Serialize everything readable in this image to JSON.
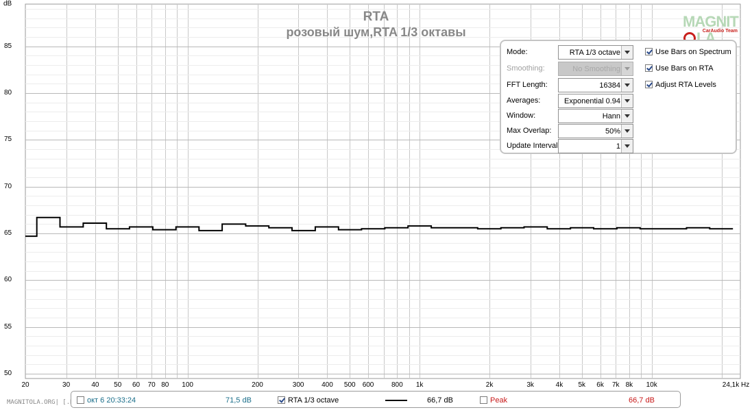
{
  "chart_data": {
    "type": "line",
    "title": "RTA",
    "subtitle": "розовый шум,RTA 1/3 октавы",
    "ylabel": "dB",
    "xlabel": "Hz",
    "xscale": "log",
    "xlim": [
      20,
      24100
    ],
    "ylim": [
      49.5,
      89.5
    ],
    "grid": true,
    "y_ticks": [
      50,
      55,
      60,
      65,
      70,
      75,
      80,
      85
    ],
    "x_tick_labels": [
      {
        "value": 20,
        "label": "20"
      },
      {
        "value": 30,
        "label": "30"
      },
      {
        "value": 40,
        "label": "40"
      },
      {
        "value": 50,
        "label": "50"
      },
      {
        "value": 60,
        "label": "60"
      },
      {
        "value": 70,
        "label": "70"
      },
      {
        "value": 80,
        "label": "80"
      },
      {
        "value": 100,
        "label": "100"
      },
      {
        "value": 200,
        "label": "200"
      },
      {
        "value": 300,
        "label": "300"
      },
      {
        "value": 400,
        "label": "400"
      },
      {
        "value": 500,
        "label": "500"
      },
      {
        "value": 600,
        "label": "600"
      },
      {
        "value": 800,
        "label": "800"
      },
      {
        "value": 1000,
        "label": "1k"
      },
      {
        "value": 2000,
        "label": "2k"
      },
      {
        "value": 3000,
        "label": "3k"
      },
      {
        "value": 4000,
        "label": "4k"
      },
      {
        "value": 5000,
        "label": "5k"
      },
      {
        "value": 6000,
        "label": "6k"
      },
      {
        "value": 7000,
        "label": "7k"
      },
      {
        "value": 8000,
        "label": "8k"
      },
      {
        "value": 10000,
        "label": "10k"
      },
      {
        "value": 24100,
        "label": "24,1k"
      }
    ],
    "series": [
      {
        "name": "RTA 1/3 octave",
        "color": "#000000",
        "style": "step",
        "x": [
          18,
          22.4,
          28.2,
          35.5,
          44.7,
          56.2,
          70.8,
          89.1,
          112,
          141,
          178,
          224,
          282,
          355,
          447,
          562,
          708,
          891,
          1122,
          1413,
          1778,
          2239,
          2818,
          3548,
          4467,
          5623,
          7079,
          8913,
          11220,
          14125,
          17783,
          22387
        ],
        "y": [
          64.7,
          66.7,
          65.7,
          66.1,
          65.5,
          65.7,
          65.4,
          65.7,
          65.3,
          66.0,
          65.8,
          65.6,
          65.3,
          65.7,
          65.4,
          65.5,
          65.6,
          65.8,
          65.6,
          65.6,
          65.5,
          65.6,
          65.7,
          65.5,
          65.6,
          65.5,
          65.6,
          65.5,
          65.5,
          65.6,
          65.5,
          65.5
        ],
        "x_end": 25119
      }
    ]
  },
  "logo": {
    "main_left": "MAGNIT",
    "main_right": "LA",
    "sub": "CarAudio Team"
  },
  "panel": {
    "rows": [
      {
        "label": "Mode:",
        "value": "RTA 1/3 octave",
        "disabled": false
      },
      {
        "label": "Smoothing:",
        "value": "No Smoothing",
        "disabled": true
      },
      {
        "label": "FFT Length:",
        "value": "16384",
        "disabled": false
      },
      {
        "label": "Averages:",
        "value": "Exponential 0.94",
        "disabled": false
      },
      {
        "label": "Window:",
        "value": "Hann",
        "disabled": false
      },
      {
        "label": "Max Overlap:",
        "value": "50%",
        "disabled": false
      },
      {
        "label": "Update Interval:",
        "value": "1",
        "disabled": false
      }
    ],
    "checks": [
      {
        "label": "Use Bars on Spectrum",
        "checked": true
      },
      {
        "label": "Use Bars on RTA",
        "checked": true
      },
      {
        "label": "Adjust RTA Levels",
        "checked": true
      }
    ]
  },
  "legend": {
    "timestamp": "окт 6 20:33:24",
    "cursor_value": "71,5 dB",
    "series_label": "RTA 1/3 octave",
    "series_value": "66,7 dB",
    "peak_label": "Peak",
    "peak_value": "66,7 dB",
    "timestamp_color": "#1a6e8a",
    "peak_color": "#c81818"
  },
  "watermark": "MAGNITOLA.ORG| [.RU] [.NET]"
}
